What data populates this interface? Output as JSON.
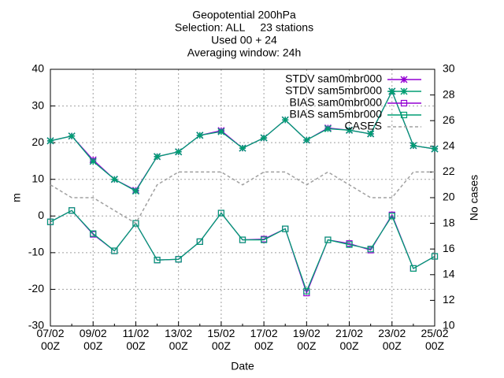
{
  "chart_data": {
    "type": "line",
    "title": [
      "Geopotential 200hPa",
      "Selection: ALL     23 stations",
      "Used 00 + 24",
      "Averaging window: 24h"
    ],
    "xlabel": "Date",
    "ylabel": "m",
    "y2label": "No cases",
    "categories": [
      "07/02 00Z",
      null,
      "09/02 00Z",
      null,
      "11/02 00Z",
      null,
      "13/02 00Z",
      null,
      "15/02 00Z",
      null,
      "17/02 00Z",
      null,
      "19/02 00Z",
      null,
      "21/02 00Z",
      null,
      "23/02 00Z",
      null,
      "25/02 00Z"
    ],
    "ylim": [
      -30,
      40
    ],
    "yticks": [
      -30,
      -20,
      -10,
      0,
      10,
      20,
      30,
      40
    ],
    "y2lim": [
      10,
      30
    ],
    "y2ticks": [
      10,
      12,
      14,
      16,
      18,
      20,
      22,
      24,
      26,
      28,
      30
    ],
    "grid": true,
    "legend": "top-right",
    "series": [
      {
        "name": "STDV sam0mbr000",
        "color": "#9400d3",
        "marker": "star",
        "values": [
          20.5,
          21.8,
          15.3,
          10.0,
          7.0,
          16.2,
          17.5,
          22.0,
          23.3,
          18.5,
          21.3,
          26.2,
          20.7,
          24.0,
          23.4,
          22.4,
          34.0,
          19.2,
          18.3
        ]
      },
      {
        "name": "STDV sam5mbr000",
        "color": "#009e73",
        "marker": "star",
        "values": [
          20.5,
          21.8,
          14.9,
          10.0,
          6.8,
          16.2,
          17.5,
          22.0,
          23.0,
          18.5,
          21.3,
          26.2,
          20.7,
          23.8,
          23.4,
          22.4,
          34.0,
          19.2,
          18.3
        ]
      },
      {
        "name": "BIAS sam0mbr000",
        "color": "#9400d3",
        "marker": "square",
        "values": [
          -1.6,
          1.5,
          -5.0,
          -9.5,
          -2.0,
          -12.0,
          -11.8,
          -7.0,
          0.8,
          -6.5,
          -6.3,
          -3.5,
          -21.0,
          -6.5,
          -7.5,
          -9.3,
          0.3,
          -14.3,
          -11.0
        ]
      },
      {
        "name": "BIAS sam5mbr000",
        "color": "#009e73",
        "marker": "square",
        "values": [
          -1.6,
          1.5,
          -4.8,
          -9.5,
          -2.0,
          -12.0,
          -11.8,
          -7.0,
          0.8,
          -6.5,
          -6.5,
          -3.5,
          -20.5,
          -6.5,
          -7.8,
          -9.0,
          0.0,
          -14.3,
          -11.0
        ]
      },
      {
        "name": "CASES",
        "color": "#a0a0a0",
        "marker": "none",
        "dash": true,
        "axis": "y2",
        "values": [
          21,
          20,
          20,
          19,
          18,
          21,
          22,
          22,
          22,
          21,
          22,
          22,
          21,
          22,
          21,
          20,
          20,
          22,
          22
        ]
      }
    ]
  }
}
